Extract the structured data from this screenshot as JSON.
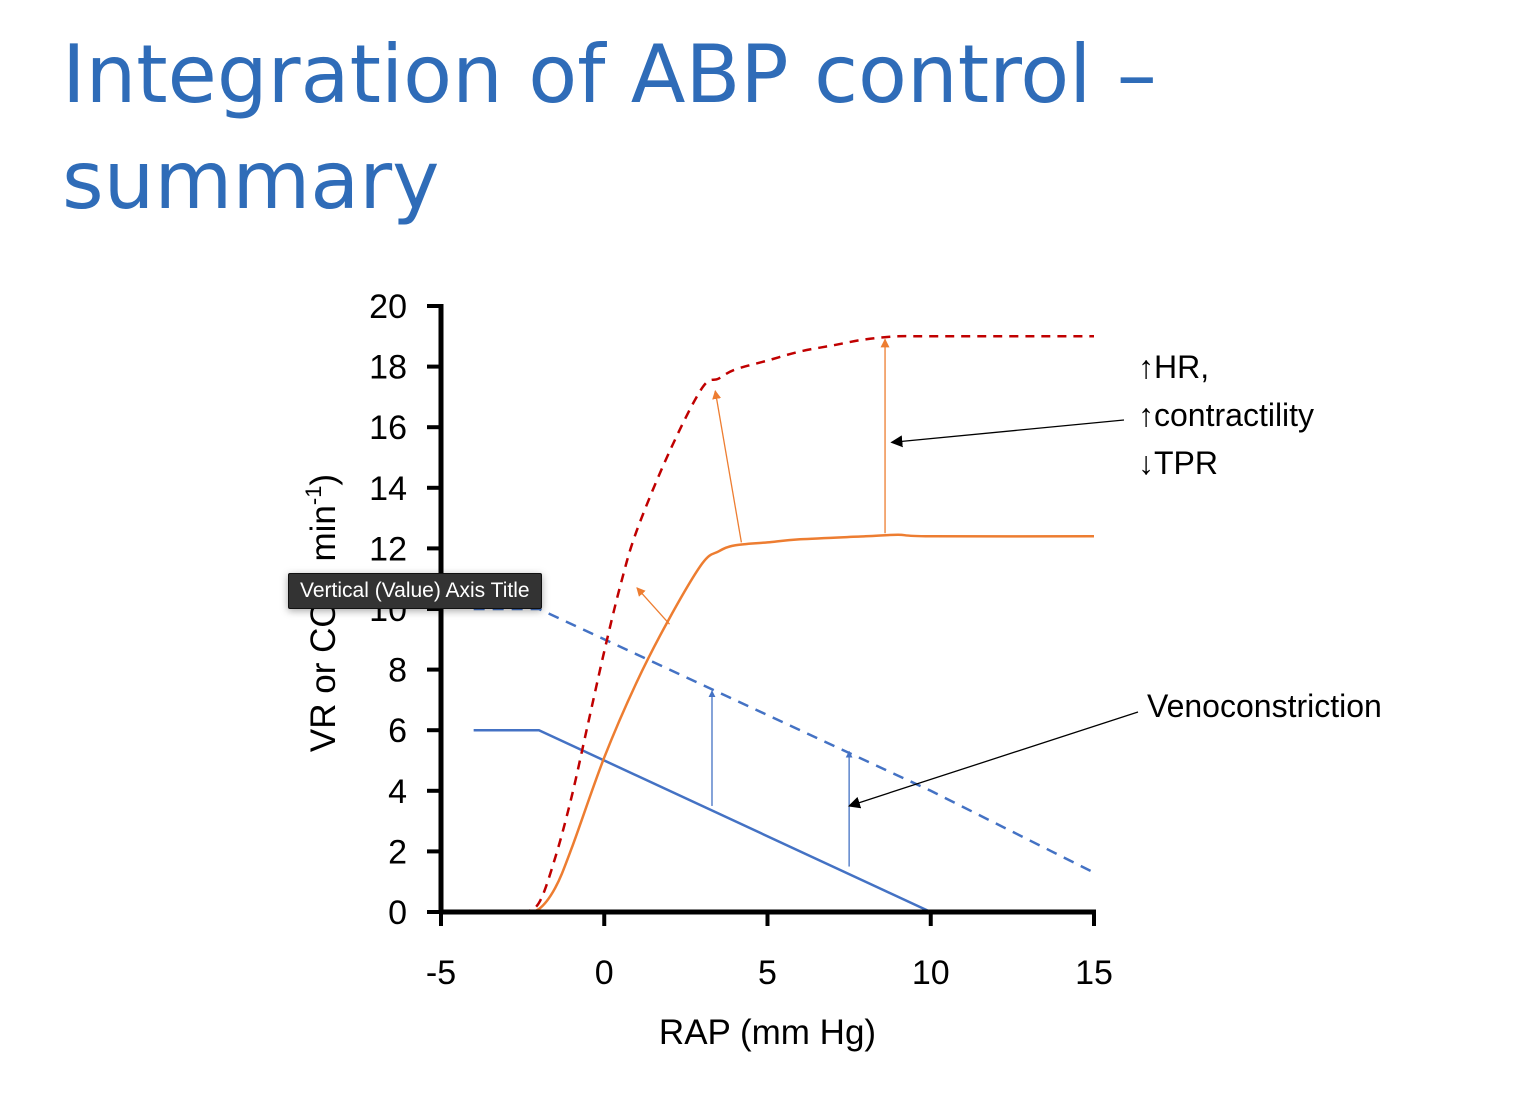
{
  "slide": {
    "title": "Integration of ABP control – summary"
  },
  "tooltip": {
    "text": "Vertical (Value) Axis Title"
  },
  "colors": {
    "blue": "#4472c4",
    "orange": "#ed7d31",
    "dark_red": "#c00000",
    "arrow_black": "#000000"
  },
  "chart_data": {
    "type": "line",
    "title": "",
    "xlabel": "RAP (mm Hg)",
    "ylabel": "VR or CO (l min-1)",
    "ylabel_parts": {
      "main": "VR or CO (l min",
      "sup": "-1",
      "tail": ")"
    },
    "xlim": [
      -5,
      15
    ],
    "ylim": [
      0,
      20
    ],
    "x_ticks": [
      -5,
      0,
      5,
      10,
      15
    ],
    "y_ticks": [
      0,
      2,
      4,
      6,
      8,
      10,
      12,
      14,
      16,
      18,
      20
    ],
    "grid": false,
    "legend": "none",
    "series": [
      {
        "id": "vr-normal",
        "style": "solid",
        "color": "#4472c4",
        "points": [
          [
            -4,
            6
          ],
          [
            -2,
            6
          ],
          [
            10,
            0
          ],
          [
            15,
            0
          ]
        ]
      },
      {
        "id": "vr-venoconstriction",
        "style": "dashed",
        "color": "#4472c4",
        "points": [
          [
            -4,
            10
          ],
          [
            -2,
            10
          ],
          [
            10,
            4
          ],
          [
            15,
            1.3
          ]
        ]
      },
      {
        "id": "co-normal",
        "style": "solid",
        "color": "#ed7d31",
        "points": [
          [
            -4,
            0
          ],
          [
            -3,
            0
          ],
          [
            -2.5,
            0
          ],
          [
            -2,
            0.1
          ],
          [
            -1.5,
            0.8
          ],
          [
            -1,
            2.1
          ],
          [
            0,
            5.1
          ],
          [
            1,
            7.6
          ],
          [
            2,
            9.7
          ],
          [
            3,
            11.5
          ],
          [
            3.5,
            11.9
          ],
          [
            4,
            12.1
          ],
          [
            5,
            12.2
          ],
          [
            6,
            12.3
          ],
          [
            8,
            12.4
          ],
          [
            9,
            12.45
          ],
          [
            10,
            12.4
          ],
          [
            15,
            12.4
          ]
        ]
      },
      {
        "id": "co-increased",
        "style": "dashed",
        "color": "#c00000",
        "points": [
          [
            -4,
            0
          ],
          [
            -3,
            0
          ],
          [
            -2.5,
            0
          ],
          [
            -2,
            0.3
          ],
          [
            -1.5,
            1.8
          ],
          [
            -1,
            3.8
          ],
          [
            -0.5,
            6.2
          ],
          [
            0,
            8.6
          ],
          [
            0.5,
            10.8
          ],
          [
            1,
            12.6
          ],
          [
            2,
            15.2
          ],
          [
            3,
            17.3
          ],
          [
            3.5,
            17.6
          ],
          [
            4,
            17.9
          ],
          [
            5,
            18.2
          ],
          [
            6,
            18.5
          ],
          [
            7,
            18.7
          ],
          [
            8,
            18.9
          ],
          [
            9,
            19
          ],
          [
            10,
            19
          ],
          [
            15,
            19
          ]
        ]
      }
    ],
    "shift_arrows": [
      {
        "color": "#4472c4",
        "from": [
          3.3,
          3.5
        ],
        "to": [
          3.3,
          7.3
        ]
      },
      {
        "color": "#4472c4",
        "from": [
          7.5,
          1.5
        ],
        "to": [
          7.5,
          5.3
        ]
      },
      {
        "color": "#ed7d31",
        "from": [
          2,
          9.5
        ],
        "to": [
          1,
          10.7
        ]
      },
      {
        "color": "#ed7d31",
        "from": [
          4.2,
          12.2
        ],
        "to": [
          3.4,
          17.2
        ]
      },
      {
        "color": "#ed7d31",
        "from": [
          8.6,
          12.5
        ],
        "to": [
          8.6,
          18.9
        ]
      }
    ],
    "annotations": [
      {
        "id": "hr-annotation",
        "lines": [
          "↑HR,",
          "↑contractility",
          "↓TPR"
        ],
        "pointer_to": [
          8.8,
          15.5
        ]
      },
      {
        "id": "venoconstriction-annotation",
        "lines": [
          "Venoconstriction"
        ],
        "pointer_to": [
          7.5,
          3.5
        ]
      }
    ]
  }
}
